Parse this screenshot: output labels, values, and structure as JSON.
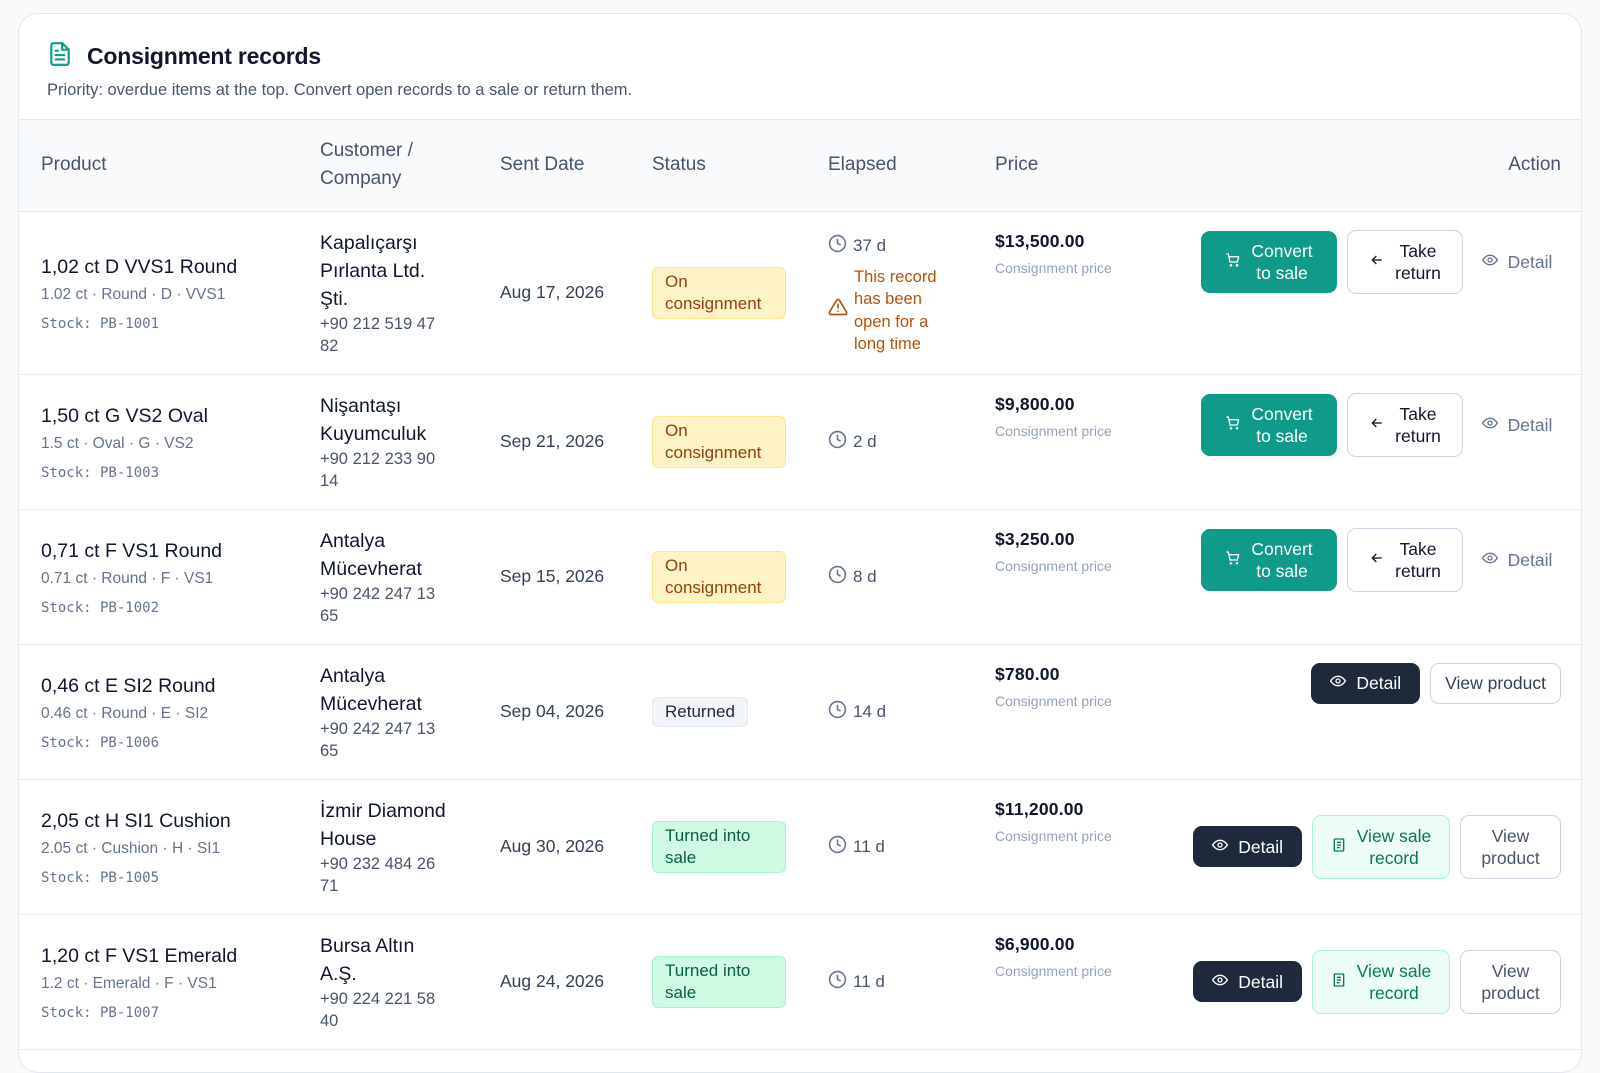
{
  "header": {
    "title": "Consignment records",
    "subtitle": "Priority: overdue items at the top. Convert open records to a sale or return them."
  },
  "columns": {
    "product": "Product",
    "customer_line1": "Customer /",
    "customer_line2": "Company",
    "sent_date": "Sent Date",
    "status": "Status",
    "elapsed": "Elapsed",
    "price": "Price",
    "action": "Action"
  },
  "labels": {
    "price_sub": "Consignment price",
    "convert_line1": "Convert",
    "convert_line2": "to sale",
    "return_line1": "Take",
    "return_line2": "return",
    "detail": "Detail",
    "view_product": "View product",
    "view_line1": "View",
    "view_line2": "product",
    "view_sale_line1": "View sale",
    "view_sale_line2": "record",
    "warning_text": "This record has been open for a long time"
  },
  "rows": [
    {
      "name": "1,02 ct D VVS1 Round",
      "spec": "1.02 ct · Round · D · VVS1",
      "stock": "Stock: PB-1001",
      "customer": [
        "Kapalıçarşı",
        "Pırlanta Ltd.",
        "Şti."
      ],
      "phone": [
        "+90 212 519 47",
        "82"
      ],
      "sent": "Aug 17, 2026",
      "status": [
        "On",
        "consignment"
      ],
      "elapsed": "37 d",
      "price": "$13,500.00"
    },
    {
      "name": "1,50 ct G VS2 Oval",
      "spec": "1.5 ct · Oval · G · VS2",
      "stock": "Stock: PB-1003",
      "customer": [
        "Nişantaşı",
        "Kuyumculuk"
      ],
      "phone": [
        "+90 212 233 90",
        "14"
      ],
      "sent": "Sep 21, 2026",
      "status": [
        "On",
        "consignment"
      ],
      "elapsed": "2 d",
      "price": "$9,800.00"
    },
    {
      "name": "0,71 ct F VS1 Round",
      "spec": "0.71 ct · Round · F · VS1",
      "stock": "Stock: PB-1002",
      "customer": [
        "Antalya",
        "Mücevherat"
      ],
      "phone": [
        "+90 242 247 13",
        "65"
      ],
      "sent": "Sep 15, 2026",
      "status": [
        "On",
        "consignment"
      ],
      "elapsed": "8 d",
      "price": "$3,250.00"
    },
    {
      "name": "0,46 ct E SI2 Round",
      "spec": "0.46 ct · Round · E · SI2",
      "stock": "Stock: PB-1006",
      "customer": [
        "Antalya",
        "Mücevherat"
      ],
      "phone": [
        "+90 242 247 13",
        "65"
      ],
      "sent": "Sep 04, 2026",
      "status": [
        "Returned"
      ],
      "elapsed": "14 d",
      "price": "$780.00"
    },
    {
      "name": "2,05 ct H SI1 Cushion",
      "spec": "2.05 ct · Cushion · H · SI1",
      "stock": "Stock: PB-1005",
      "customer": [
        "İzmir Diamond",
        "House"
      ],
      "phone": [
        "+90 232 484 26",
        "71"
      ],
      "sent": "Aug 30, 2026",
      "status": [
        "Turned into",
        "sale"
      ],
      "elapsed": "11 d",
      "price": "$11,200.00"
    },
    {
      "name": "1,20 ct F VS1 Emerald",
      "spec": "1.2 ct · Emerald · F · VS1",
      "stock": "Stock: PB-1007",
      "customer": [
        "Bursa Altın",
        "A.Ş."
      ],
      "phone": [
        "+90 224 221 58",
        "40"
      ],
      "sent": "Aug 24, 2026",
      "status": [
        "Turned into",
        "sale"
      ],
      "elapsed": "11 d",
      "price": "$6,900.00"
    }
  ],
  "colors": {
    "accent": "#0f9a8a",
    "dark": "#1e293b",
    "warning": "#b45309"
  },
  "icons": {
    "title": "document-icon",
    "elapsed": "clock-icon",
    "warning": "warning-triangle-icon",
    "convert": "cart-icon",
    "return": "arrow-left-icon",
    "detail": "eye-icon",
    "sale_record": "receipt-icon"
  }
}
